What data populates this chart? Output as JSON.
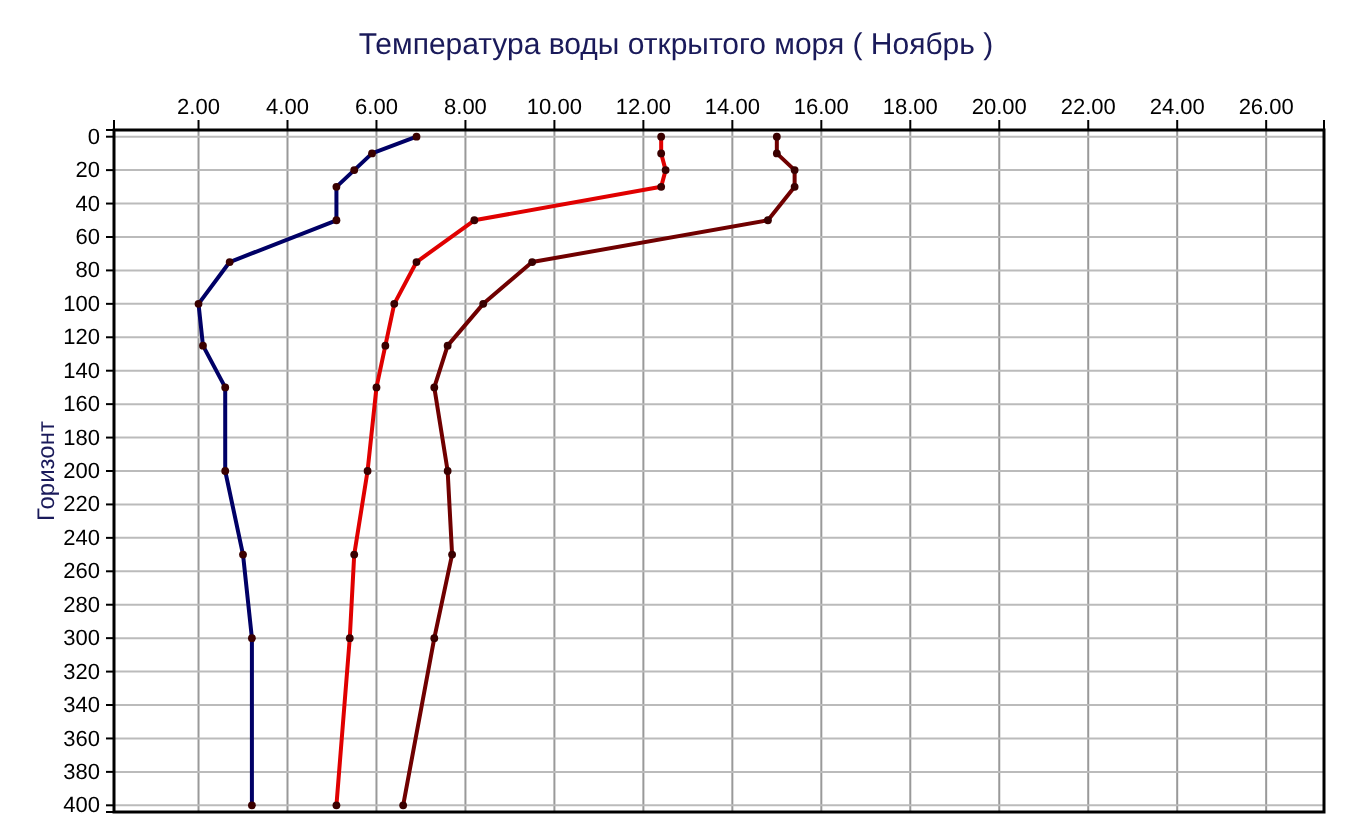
{
  "chart_data": {
    "type": "line",
    "title": "Температура воды открытого моря     ( Ноябрь )",
    "ylabel": "Горизонт",
    "xlim": [
      0.1,
      27.3
    ],
    "xticks": [
      {
        "value": 2,
        "label": "2.00"
      },
      {
        "value": 4,
        "label": "4.00"
      },
      {
        "value": 6,
        "label": "6.00"
      },
      {
        "value": 8,
        "label": "8.00"
      },
      {
        "value": 10,
        "label": "10.00"
      },
      {
        "value": 12,
        "label": "12.00"
      },
      {
        "value": 14,
        "label": "14.00"
      },
      {
        "value": 16,
        "label": "16.00"
      },
      {
        "value": 18,
        "label": "18.00"
      },
      {
        "value": 20,
        "label": "20.00"
      },
      {
        "value": 22,
        "label": "22.00"
      },
      {
        "value": 24,
        "label": "24.00"
      },
      {
        "value": 26,
        "label": "26.00"
      }
    ],
    "ylim": [
      404,
      -4
    ],
    "yticks": [
      0,
      20,
      40,
      60,
      80,
      100,
      120,
      140,
      160,
      180,
      200,
      220,
      240,
      260,
      280,
      300,
      320,
      340,
      360,
      380,
      400
    ],
    "grid": true,
    "marker": "circle",
    "line_style": "solid",
    "series": [
      {
        "color": "#000066",
        "x": [
          6.9,
          5.9,
          5.5,
          5.1,
          5.1,
          2.7,
          2.0,
          2.1,
          2.6,
          2.6,
          3.0,
          3.2,
          3.2
        ],
        "values": [
          0,
          10,
          20,
          30,
          50,
          75,
          100,
          125,
          150,
          200,
          250,
          300,
          400
        ]
      },
      {
        "color": "#e00000",
        "x": [
          12.4,
          12.4,
          12.5,
          12.4,
          8.2,
          6.9,
          6.4,
          6.2,
          6.0,
          5.8,
          5.5,
          5.4,
          5.1
        ],
        "values": [
          0,
          10,
          20,
          30,
          50,
          75,
          100,
          125,
          150,
          200,
          250,
          300,
          400
        ]
      },
      {
        "color": "#700000",
        "x": [
          15.0,
          15.0,
          15.4,
          15.4,
          14.8,
          9.5,
          8.4,
          7.6,
          7.3,
          7.6,
          7.7,
          7.3,
          6.6
        ],
        "values": [
          0,
          10,
          20,
          30,
          50,
          75,
          100,
          125,
          150,
          200,
          250,
          300,
          400
        ]
      }
    ]
  }
}
